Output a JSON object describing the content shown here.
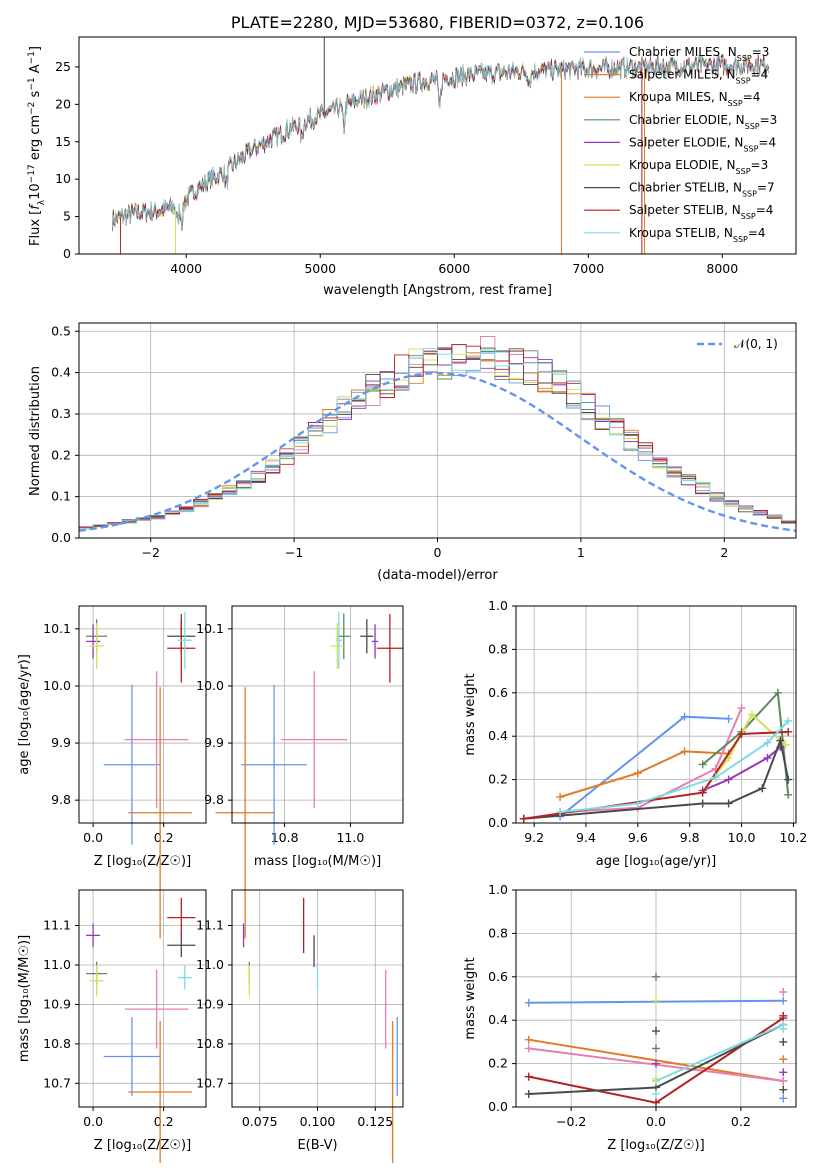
{
  "colors": {
    "blue": "#6495ED",
    "orange": "#E07B28",
    "pink": "#E67FB2",
    "green": "#5B8A5F",
    "purple": "#9A35B8",
    "yellow": "#D4E157",
    "dark": "#4A4A4A",
    "red": "#B22222",
    "cyan": "#7FD8E6"
  },
  "chart_data": [
    {
      "id": "spectrum",
      "type": "line",
      "title": "PLATE=2280, MJD=53680, FIBERID=0372, z=0.106",
      "xlabel": "wavelength [Angstrom, rest frame]",
      "ylabel": "Flux [f_λ10^{-17} erg cm^{-2} s^{-1} A^{-1}]",
      "xlim": [
        3200,
        8550
      ],
      "ylim": [
        0,
        29
      ],
      "xticks": [
        "4000",
        "5000",
        "6000",
        "7000",
        "8000"
      ],
      "yticks": [
        "0",
        "5",
        "10",
        "15",
        "20",
        "25"
      ],
      "legend": [
        {
          "name": "Chabrier MILES, N",
          "sub": "SSP",
          "tail": "=3",
          "color": "blue"
        },
        {
          "name": "Salpeter MILES, N",
          "sub": "SSP",
          "tail": "=4",
          "color": "orange"
        },
        {
          "name": "Kroupa MILES, N",
          "sub": "SSP",
          "tail": "=4",
          "color": "orange"
        },
        {
          "name": "Chabrier ELODIE, N",
          "sub": "SSP",
          "tail": "=3",
          "color": "green"
        },
        {
          "name": "Salpeter ELODIE, N",
          "sub": "SSP",
          "tail": "=4",
          "color": "purple"
        },
        {
          "name": "Kroupa ELODIE, N",
          "sub": "SSP",
          "tail": "=3",
          "color": "yellow"
        },
        {
          "name": "Chabrier STELIB, N",
          "sub": "SSP",
          "tail": "=7",
          "color": "dark"
        },
        {
          "name": "Salpeter STELIB, N",
          "sub": "SSP",
          "tail": "=4",
          "color": "red"
        },
        {
          "name": "Kroupa STELIB, N",
          "sub": "SSP",
          "tail": "=4",
          "color": "cyan"
        }
      ],
      "continuum": [
        [
          3450,
          4.6
        ],
        [
          3600,
          5.4
        ],
        [
          3800,
          5.8
        ],
        [
          3950,
          6.5
        ],
        [
          4100,
          9.0
        ],
        [
          4300,
          11.2
        ],
        [
          4500,
          14.0
        ],
        [
          4800,
          17.0
        ],
        [
          5000,
          18.5
        ],
        [
          5200,
          20.0
        ],
        [
          5500,
          21.8
        ],
        [
          5800,
          23.2
        ],
        [
          6100,
          23.9
        ],
        [
          6500,
          24.4
        ],
        [
          7000,
          24.8
        ],
        [
          7500,
          25.0
        ],
        [
          8000,
          25.2
        ],
        [
          8350,
          25.3
        ]
      ],
      "spikes": [
        {
          "x": 3510,
          "y": 0.0,
          "color": "red"
        },
        {
          "x": 3920,
          "y": 0.0,
          "color": "yellow"
        },
        {
          "x": 5030,
          "y": 29.0,
          "color": "dark"
        },
        {
          "x": 6800,
          "y": 0.0,
          "color": "orange"
        },
        {
          "x": 7400,
          "y": 0.0,
          "color": "red"
        },
        {
          "x": 7420,
          "y": 0.0,
          "color": "orange"
        }
      ],
      "dips": [
        {
          "x": 3934,
          "depth": 2.0
        },
        {
          "x": 3968,
          "depth": 2.5
        },
        {
          "x": 4300,
          "depth": 2.0
        },
        {
          "x": 4861,
          "depth": 2.0
        },
        {
          "x": 5175,
          "depth": 3.0
        },
        {
          "x": 5890,
          "depth": 4.0
        },
        {
          "x": 6563,
          "depth": 1.5
        }
      ]
    },
    {
      "id": "residuals",
      "type": "bar",
      "xlabel": "(data-model)/error",
      "ylabel": "Normed distribution",
      "xlim": [
        -2.5,
        2.5
      ],
      "ylim": [
        0,
        0.52
      ],
      "xticks": [
        "−2",
        "−1",
        "0",
        "1",
        "2"
      ],
      "yticks": [
        "0.0",
        "0.1",
        "0.2",
        "0.3",
        "0.4",
        "0.5"
      ],
      "legend": [
        {
          "name": "𝒩(0, 1)",
          "color": "blue"
        }
      ],
      "bin_width": 0.1,
      "bin_start": -2.5,
      "envelope": [
        0.025,
        0.03,
        0.035,
        0.04,
        0.045,
        0.05,
        0.06,
        0.07,
        0.085,
        0.1,
        0.115,
        0.13,
        0.15,
        0.175,
        0.2,
        0.225,
        0.255,
        0.28,
        0.31,
        0.335,
        0.36,
        0.38,
        0.4,
        0.415,
        0.42,
        0.43,
        0.44,
        0.435,
        0.44,
        0.43,
        0.42,
        0.41,
        0.39,
        0.37,
        0.345,
        0.32,
        0.29,
        0.26,
        0.235,
        0.21,
        0.185,
        0.16,
        0.14,
        0.12,
        0.1,
        0.085,
        0.07,
        0.06,
        0.05,
        0.04
      ],
      "series_colors": [
        "blue",
        "orange",
        "pink",
        "green",
        "purple",
        "yellow",
        "dark",
        "red",
        "cyan"
      ]
    },
    {
      "id": "age_vs_Z",
      "type": "scatter",
      "xlabel": "Z [log₁₀(Z/Z☉)]",
      "ylabel": "age  [log₁₀(age/yr)]",
      "xlim": [
        -0.04,
        0.32
      ],
      "ylim": [
        9.76,
        10.14
      ],
      "xticks": [
        {
          "v": 0.0,
          "t": "0.0"
        },
        {
          "v": 0.2,
          "t": "0.2"
        }
      ],
      "yticks": [
        {
          "v": 9.8,
          "t": "9.8"
        },
        {
          "v": 9.9,
          "t": "9.9"
        },
        {
          "v": 10.0,
          "t": "10.0"
        },
        {
          "v": 10.1,
          "t": "10.1"
        }
      ],
      "points": [
        {
          "x": 0.11,
          "y": 9.862,
          "ex": 0.08,
          "ey": 0.14,
          "color": "blue"
        },
        {
          "x": 0.19,
          "y": 9.778,
          "ex": 0.09,
          "ey": 0.22,
          "color": "orange"
        },
        {
          "x": 0.18,
          "y": 9.906,
          "ex": 0.09,
          "ey": 0.12,
          "color": "pink"
        },
        {
          "x": 0.01,
          "y": 10.087,
          "ex": 0.03,
          "ey": 0.03,
          "color": "green"
        },
        {
          "x": 0.0,
          "y": 10.078,
          "ex": 0.02,
          "ey": 0.03,
          "color": "purple"
        },
        {
          "x": 0.01,
          "y": 10.07,
          "ex": 0.02,
          "ey": 0.04,
          "color": "yellow"
        },
        {
          "x": 0.25,
          "y": 10.087,
          "ex": 0.04,
          "ey": 0.03,
          "color": "dark"
        },
        {
          "x": 0.25,
          "y": 10.066,
          "ex": 0.04,
          "ey": 0.06,
          "color": "red"
        },
        {
          "x": 0.26,
          "y": 10.08,
          "ex": 0.02,
          "ey": 0.05,
          "color": "cyan"
        }
      ]
    },
    {
      "id": "age_vs_mass",
      "type": "scatter",
      "xlabel": "mass [log₁₀(M/M☉)]",
      "ylabel": "",
      "xlim": [
        10.64,
        11.16
      ],
      "ylim": [
        9.76,
        10.14
      ],
      "xticks": [
        {
          "v": 10.8,
          "t": "10.8"
        },
        {
          "v": 11.0,
          "t": "11.0"
        }
      ],
      "yticks": [
        {
          "v": 9.8,
          "t": "9.8"
        },
        {
          "v": 9.9,
          "t": "9.9"
        },
        {
          "v": 10.0,
          "t": "10.0"
        },
        {
          "v": 10.1,
          "t": "10.1"
        }
      ],
      "points": [
        {
          "x": 10.768,
          "y": 9.862,
          "ex": 0.1,
          "ey": 0.14,
          "color": "blue"
        },
        {
          "x": 10.68,
          "y": 9.778,
          "ex": 0.09,
          "ey": 0.22,
          "color": "orange"
        },
        {
          "x": 10.89,
          "y": 9.906,
          "ex": 0.1,
          "ey": 0.12,
          "color": "pink"
        },
        {
          "x": 10.98,
          "y": 10.087,
          "ex": 0.02,
          "ey": 0.04,
          "color": "green"
        },
        {
          "x": 11.075,
          "y": 10.078,
          "ex": 0.01,
          "ey": 0.03,
          "color": "purple"
        },
        {
          "x": 10.96,
          "y": 10.07,
          "ex": 0.02,
          "ey": 0.04,
          "color": "yellow"
        },
        {
          "x": 11.05,
          "y": 10.087,
          "ex": 0.02,
          "ey": 0.03,
          "color": "dark"
        },
        {
          "x": 11.12,
          "y": 10.066,
          "ex": 0.04,
          "ey": 0.06,
          "color": "red"
        },
        {
          "x": 10.965,
          "y": 10.08,
          "ex": 0.01,
          "ey": 0.05,
          "color": "cyan"
        }
      ]
    },
    {
      "id": "mw_vs_age",
      "type": "line",
      "xlabel": "age  [log₁₀(age/yr)]",
      "ylabel": "mass weight",
      "xlim": [
        9.13,
        10.21
      ],
      "ylim": [
        0,
        1
      ],
      "xticks": [
        {
          "v": 9.2,
          "t": "9.2"
        },
        {
          "v": 9.4,
          "t": "9.4"
        },
        {
          "v": 9.6,
          "t": "9.6"
        },
        {
          "v": 9.8,
          "t": "9.8"
        },
        {
          "v": 10.0,
          "t": "10.0"
        },
        {
          "v": 10.2,
          "t": "10.2"
        }
      ],
      "yticks": [
        {
          "v": 0,
          "t": "0.0"
        },
        {
          "v": 0.2,
          "t": "0.2"
        },
        {
          "v": 0.4,
          "t": "0.4"
        },
        {
          "v": 0.6,
          "t": "0.6"
        },
        {
          "v": 0.8,
          "t": "0.8"
        },
        {
          "v": 1.0,
          "t": "1.0"
        }
      ],
      "series": [
        {
          "color": "blue",
          "x": [
            9.3,
            9.78,
            9.95
          ],
          "y": [
            0.03,
            0.49,
            0.48
          ]
        },
        {
          "color": "orange",
          "x": [
            9.3,
            9.6,
            9.78,
            9.95
          ],
          "y": [
            0.12,
            0.23,
            0.33,
            0.32
          ]
        },
        {
          "color": "pink",
          "x": [
            9.3,
            9.6,
            9.9,
            10.0
          ],
          "y": [
            0.05,
            0.07,
            0.25,
            0.53
          ]
        },
        {
          "color": "green",
          "x": [
            9.85,
            10.0,
            10.14,
            10.18
          ],
          "y": [
            0.27,
            0.42,
            0.6,
            0.13
          ]
        },
        {
          "color": "purple",
          "x": [
            9.85,
            9.95,
            10.1,
            10.15
          ],
          "y": [
            0.15,
            0.2,
            0.3,
            0.35
          ]
        },
        {
          "color": "yellow",
          "x": [
            9.85,
            9.95,
            10.04,
            10.17
          ],
          "y": [
            0.14,
            0.3,
            0.5,
            0.36
          ]
        },
        {
          "color": "dark",
          "x": [
            9.16,
            9.85,
            9.95,
            10.08,
            10.15,
            10.18
          ],
          "y": [
            0.02,
            0.09,
            0.09,
            0.16,
            0.38,
            0.2
          ]
        },
        {
          "color": "red",
          "x": [
            9.16,
            9.85,
            10.0,
            10.18
          ],
          "y": [
            0.02,
            0.14,
            0.41,
            0.42
          ]
        },
        {
          "color": "cyan",
          "x": [
            9.3,
            9.6,
            9.9,
            10.1,
            10.18
          ],
          "y": [
            0.05,
            0.09,
            0.21,
            0.37,
            0.47
          ]
        }
      ]
    },
    {
      "id": "mass_vs_Z",
      "type": "scatter",
      "xlabel": "Z [log₁₀(Z/Z☉)]",
      "ylabel": "mass [log₁₀(M/M☉)]",
      "xlim": [
        -0.04,
        0.32
      ],
      "ylim": [
        10.64,
        11.19
      ],
      "xticks": [
        {
          "v": 0.0,
          "t": "0.0"
        },
        {
          "v": 0.2,
          "t": "0.2"
        }
      ],
      "yticks": [
        {
          "v": 10.7,
          "t": "10.7"
        },
        {
          "v": 10.8,
          "t": "10.8"
        },
        {
          "v": 10.9,
          "t": "10.9"
        },
        {
          "v": 11.0,
          "t": "11.0"
        },
        {
          "v": 11.1,
          "t": "11.1"
        }
      ],
      "points": [
        {
          "x": 0.11,
          "y": 10.768,
          "ex": 0.08,
          "ey": 0.1,
          "color": "blue"
        },
        {
          "x": 0.19,
          "y": 10.678,
          "ex": 0.09,
          "ey": 0.18,
          "color": "orange"
        },
        {
          "x": 0.18,
          "y": 10.888,
          "ex": 0.09,
          "ey": 0.1,
          "color": "pink"
        },
        {
          "x": 0.01,
          "y": 10.978,
          "ex": 0.03,
          "ey": 0.03,
          "color": "green"
        },
        {
          "x": 0.0,
          "y": 11.075,
          "ex": 0.02,
          "ey": 0.03,
          "color": "purple"
        },
        {
          "x": 0.01,
          "y": 10.96,
          "ex": 0.02,
          "ey": 0.04,
          "color": "yellow"
        },
        {
          "x": 0.25,
          "y": 11.05,
          "ex": 0.04,
          "ey": 0.03,
          "color": "dark"
        },
        {
          "x": 0.25,
          "y": 11.12,
          "ex": 0.04,
          "ey": 0.05,
          "color": "red"
        },
        {
          "x": 0.26,
          "y": 10.968,
          "ex": 0.02,
          "ey": 0.03,
          "color": "cyan"
        }
      ]
    },
    {
      "id": "mass_vs_ebv",
      "type": "scatter",
      "xlabel": "E(B-V)",
      "ylabel": "",
      "xlim": [
        0.063,
        0.137
      ],
      "ylim": [
        10.64,
        11.19
      ],
      "xticks": [
        {
          "v": 0.075,
          "t": "0.075"
        },
        {
          "v": 0.1,
          "t": "0.100"
        },
        {
          "v": 0.125,
          "t": "0.125"
        }
      ],
      "yticks": [
        {
          "v": 10.7,
          "t": "10.7"
        },
        {
          "v": 10.8,
          "t": "10.8"
        },
        {
          "v": 10.9,
          "t": "10.9"
        },
        {
          "v": 11.0,
          "t": "11.0"
        },
        {
          "v": 11.1,
          "t": "11.1"
        }
      ],
      "points": [
        {
          "x": 0.1345,
          "y": 10.768,
          "ex": 0.0,
          "ey": 0.1,
          "color": "blue"
        },
        {
          "x": 0.1325,
          "y": 10.678,
          "ex": 0.0,
          "ey": 0.18,
          "color": "orange"
        },
        {
          "x": 0.1295,
          "y": 10.888,
          "ex": 0.0,
          "ey": 0.1,
          "color": "pink"
        },
        {
          "x": 0.0705,
          "y": 10.978,
          "ex": 0.0,
          "ey": 0.03,
          "color": "green"
        },
        {
          "x": 0.068,
          "y": 11.075,
          "ex": 0.0,
          "ey": 0.03,
          "color": "purple"
        },
        {
          "x": 0.0705,
          "y": 10.96,
          "ex": 0.0,
          "ey": 0.04,
          "color": "yellow"
        },
        {
          "x": 0.0985,
          "y": 11.035,
          "ex": 0.0,
          "ey": 0.04,
          "color": "dark"
        },
        {
          "x": 0.094,
          "y": 11.1,
          "ex": 0.0,
          "ey": 0.07,
          "color": "red"
        },
        {
          "x": 0.1,
          "y": 10.968,
          "ex": 0.0,
          "ey": 0.03,
          "color": "cyan"
        }
      ]
    },
    {
      "id": "mw_vs_Z",
      "type": "line",
      "xlabel": "Z [log₁₀(Z/Z☉)]",
      "ylabel": "mass weight",
      "xlim": [
        -0.33,
        0.33
      ],
      "ylim": [
        0,
        1
      ],
      "xticks": [
        {
          "v": -0.2,
          "t": "−0.2"
        },
        {
          "v": 0.0,
          "t": "0.0"
        },
        {
          "v": 0.2,
          "t": "0.2"
        }
      ],
      "yticks": [
        {
          "v": 0,
          "t": "0.0"
        },
        {
          "v": 0.2,
          "t": "0.2"
        },
        {
          "v": 0.4,
          "t": "0.4"
        },
        {
          "v": 0.6,
          "t": "0.6"
        },
        {
          "v": 0.8,
          "t": "0.8"
        },
        {
          "v": 1.0,
          "t": "1.0"
        }
      ],
      "series": [
        {
          "color": "blue",
          "x": [
            -0.3,
            0.3
          ],
          "y": [
            0.48,
            0.49
          ]
        },
        {
          "color": "orange",
          "x": [
            -0.3,
            0.3
          ],
          "y": [
            0.31,
            0.12
          ]
        },
        {
          "color": "pink",
          "x": [
            -0.3,
            0.3
          ],
          "y": [
            0.27,
            0.12
          ]
        },
        {
          "color": "red",
          "x": [
            -0.3,
            0.0,
            0.3
          ],
          "y": [
            0.14,
            0.02,
            0.41
          ]
        },
        {
          "color": "dark",
          "x": [
            -0.3,
            0.0,
            0.3
          ],
          "y": [
            0.06,
            0.09,
            0.38
          ]
        },
        {
          "color": "cyan",
          "x": [
            0.0,
            0.3
          ],
          "y": [
            0.12,
            0.38
          ]
        }
      ],
      "markers": [
        {
          "x": 0.0,
          "y": [
            0.6,
            0.49,
            0.35,
            0.27,
            0.2,
            0.13,
            0.06
          ],
          "colors": [
            "green",
            "yellow",
            "dark",
            "green",
            "purple",
            "yellow",
            "cyan"
          ]
        },
        {
          "x": 0.3,
          "y": [
            0.53,
            0.42,
            0.36,
            0.3,
            0.22,
            0.16,
            0.08,
            0.04
          ],
          "colors": [
            "pink",
            "red",
            "cyan",
            "dark",
            "orange",
            "purple",
            "dark",
            "blue"
          ]
        }
      ]
    }
  ]
}
